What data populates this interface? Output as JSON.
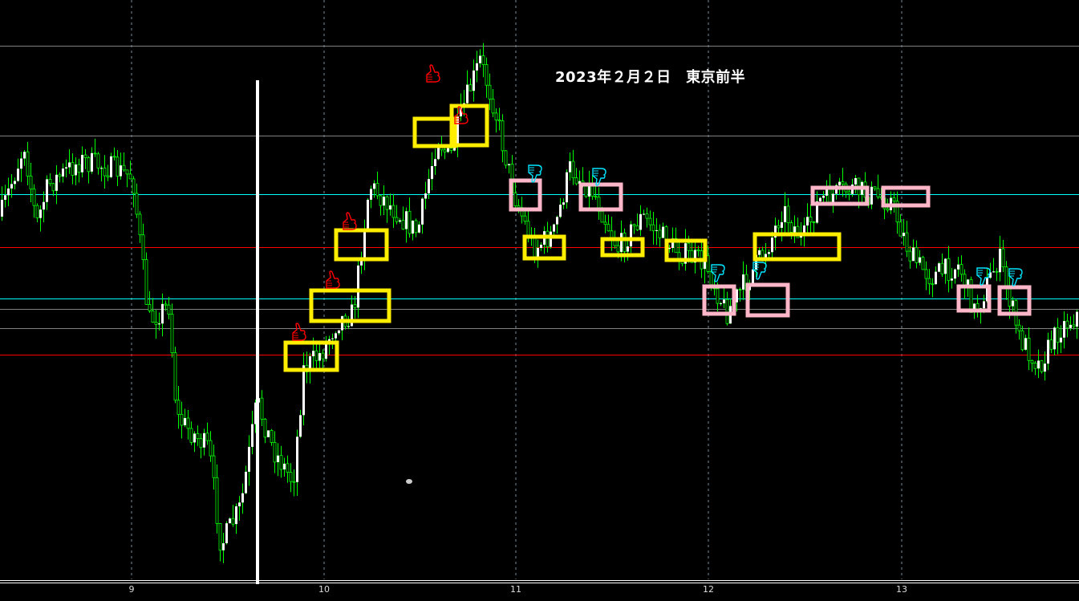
{
  "chart_data": {
    "type": "candlestick",
    "title": "2023年２月２日　東京前半",
    "x_tick_labels": [
      "9",
      "10",
      "11",
      "12",
      "13"
    ],
    "grid": "vertical dashed",
    "colors": {
      "background": "#000000",
      "wick": "#00ff00",
      "bull_body": "#ffffff",
      "bear_body": "#000000",
      "entry_box": "#ffee00",
      "exit_box": "#ffb6c8",
      "thumb_up": "#ff0000",
      "thumb_down": "#00e5ff",
      "level_red": "#ff0000",
      "level_cyan": "#00ffff",
      "level_gray": "#808080"
    },
    "annotations": {
      "thumbs_up": 5,
      "thumbs_down": 6,
      "yellow_boxes": 9,
      "pink_boxes": 8
    }
  }
}
